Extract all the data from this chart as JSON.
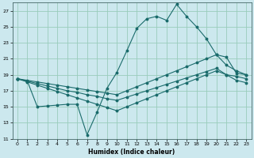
{
  "xlabel": "Humidex (Indice chaleur)",
  "bg_color": "#cce8ee",
  "grid_color": "#99ccbb",
  "line_color": "#1a6b6b",
  "xlim": [
    -0.5,
    23.5
  ],
  "ylim": [
    11,
    28
  ],
  "yticks": [
    11,
    13,
    15,
    17,
    19,
    21,
    23,
    25,
    27
  ],
  "xticks": [
    0,
    1,
    2,
    3,
    4,
    5,
    6,
    7,
    8,
    9,
    10,
    11,
    12,
    13,
    14,
    15,
    16,
    17,
    18,
    19,
    20,
    21,
    22,
    23
  ],
  "series_main_x": [
    0,
    1,
    2,
    3,
    4,
    5,
    6,
    7,
    8,
    9,
    10,
    11,
    12,
    13,
    14,
    15,
    16,
    17,
    18,
    19,
    20,
    21,
    22,
    23
  ],
  "series_main_y": [
    18.5,
    18.2,
    15.0,
    15.1,
    15.2,
    15.3,
    15.3,
    11.5,
    14.3,
    17.3,
    19.3,
    22.0,
    24.8,
    26.0,
    26.3,
    25.8,
    27.8,
    26.3,
    25.0,
    23.5,
    21.5,
    20.2,
    19.5,
    19.0
  ],
  "series_upper_x": [
    0,
    1,
    2,
    3,
    4,
    5,
    6,
    7,
    8,
    9,
    10,
    11,
    12,
    13,
    14,
    15,
    16,
    17,
    18,
    19,
    20,
    21,
    22,
    23
  ],
  "series_upper_y": [
    18.5,
    18.3,
    18.1,
    17.9,
    17.7,
    17.5,
    17.3,
    17.1,
    16.9,
    16.7,
    16.5,
    17.0,
    17.5,
    18.0,
    18.5,
    19.0,
    19.5,
    20.0,
    20.5,
    21.0,
    21.5,
    21.2,
    19.2,
    19.0
  ],
  "series_mid_x": [
    0,
    1,
    2,
    3,
    4,
    5,
    6,
    7,
    8,
    9,
    10,
    11,
    12,
    13,
    14,
    15,
    16,
    17,
    18,
    19,
    20,
    21,
    22,
    23
  ],
  "series_mid_y": [
    18.5,
    18.2,
    17.9,
    17.6,
    17.3,
    17.0,
    16.8,
    16.5,
    16.3,
    16.0,
    15.8,
    16.2,
    16.6,
    17.0,
    17.4,
    17.8,
    18.2,
    18.6,
    19.0,
    19.4,
    19.8,
    19.0,
    18.3,
    18.0
  ],
  "series_lower_x": [
    0,
    1,
    2,
    3,
    4,
    5,
    6,
    7,
    8,
    9,
    10,
    11,
    12,
    13,
    14,
    15,
    16,
    17,
    18,
    19,
    20,
    21,
    22,
    23
  ],
  "series_lower_y": [
    18.5,
    18.1,
    17.7,
    17.3,
    16.9,
    16.5,
    16.1,
    15.7,
    15.3,
    14.9,
    14.5,
    15.0,
    15.5,
    16.0,
    16.5,
    17.0,
    17.5,
    18.0,
    18.5,
    19.0,
    19.5,
    19.0,
    18.8,
    18.5
  ]
}
